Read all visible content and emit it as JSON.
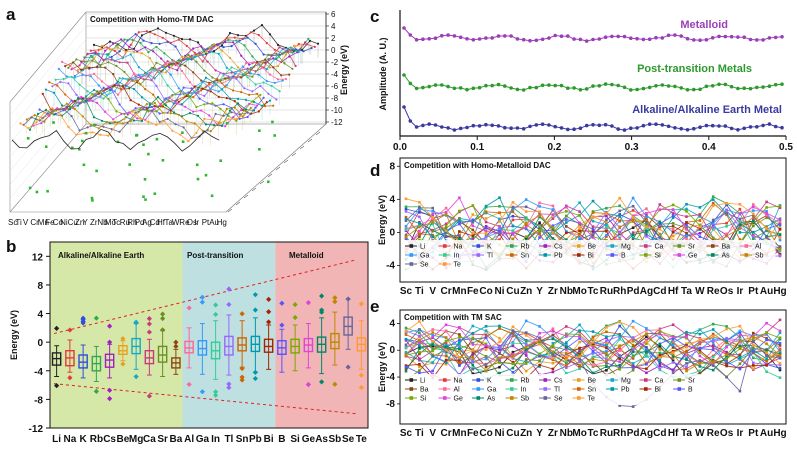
{
  "panels": {
    "a": {
      "label": "a",
      "title": "Competition with Homo-TM DAC",
      "ylabel": "Energy (eV)",
      "yticks": [
        "6",
        "4",
        "2",
        "0",
        "-2",
        "-4",
        "-6",
        "-8",
        "-10",
        "-12"
      ],
      "xlabels": [
        "Sc",
        "Ti",
        "V",
        "Cr",
        "Mn",
        "Fe",
        "Co",
        "Ni",
        "Cu",
        "Zn",
        "Y",
        "Zr",
        "Nb",
        "Mo",
        "Tc",
        "Ru",
        "Rh",
        "Pd",
        "Ag",
        "Cd",
        "Hf",
        "Ta",
        "W",
        "Re",
        "Os",
        "Ir",
        "Pt",
        "Au",
        "Hg"
      ]
    },
    "b": {
      "label": "b",
      "ylabel": "Energy (eV)",
      "regions": [
        {
          "name": "Alkaline/Alkaline Earth",
          "color": "#d6e8a8"
        },
        {
          "name": "Post-transition",
          "color": "#bfe0e0"
        },
        {
          "name": "Metalloid",
          "color": "#f2b5b5"
        }
      ],
      "yticks": [
        "12",
        "8",
        "4",
        "0",
        "-4",
        "-8",
        "-12"
      ],
      "xlabels": [
        "Li",
        "Na",
        "K",
        "Rb",
        "Cs",
        "Be",
        "Mg",
        "Ca",
        "Sr",
        "Ba",
        "Al",
        "Ga",
        "In",
        "Tl",
        "Sn",
        "Pb",
        "Bi",
        "B",
        "Si",
        "Ge",
        "As",
        "Sb",
        "Se",
        "Te"
      ]
    },
    "c": {
      "label": "c",
      "ylabel": "Amplitude (A. U.)",
      "xticks": [
        "0.0",
        "0.1",
        "0.2",
        "0.3",
        "0.4",
        "0.5"
      ],
      "series": [
        {
          "name": "Metalloid",
          "color": "#9b3fb8"
        },
        {
          "name": "Post-transition Metals",
          "color": "#2e9a2e"
        },
        {
          "name": "Alkaline/Alkaline Earth Metal",
          "color": "#3a3aa0"
        }
      ]
    },
    "d": {
      "label": "d",
      "title": "Competition with Homo-Metalloid DAC",
      "ylabel": "Energy (eV)",
      "yticks": [
        "8",
        "4",
        "0",
        "-4"
      ],
      "legend": [
        "Li",
        "Na",
        "K",
        "Rb",
        "Cs",
        "Be",
        "Mg",
        "Ca",
        "Sr",
        "Ba",
        "Al",
        "Ga",
        "In",
        "Tl",
        "Sn",
        "Pb",
        "Bi",
        "B",
        "Si",
        "Ge",
        "As",
        "Sb",
        "Se",
        "Te"
      ]
    },
    "e": {
      "label": "e",
      "title": "Competition with TM SAC",
      "ylabel": "Energy (eV)",
      "yticks": [
        "4",
        "0",
        "-4",
        "-8"
      ],
      "legend": [
        "Li",
        "Na",
        "K",
        "Rb",
        "Cs",
        "Be",
        "Mg",
        "Ca",
        "Sr",
        "Ba",
        "Al",
        "Ga",
        "In",
        "Tl",
        "Sn",
        "Pb",
        "Bi",
        "B",
        "Si",
        "Ge",
        "As",
        "Sb",
        "Se",
        "Te"
      ]
    }
  },
  "tm_labels": [
    "Sc",
    "Ti",
    "V",
    "Cr",
    "Mn",
    "Fe",
    "Co",
    "Ni",
    "Cu",
    "Zn",
    "Y",
    "Zr",
    "Nb",
    "Mo",
    "Tc",
    "Ru",
    "Rh",
    "Pd",
    "Ag",
    "Cd",
    "Hf",
    "Ta",
    "W",
    "Re",
    "Os",
    "Ir",
    "Pt",
    "Au",
    "Hg"
  ],
  "chart_data": [
    {
      "type": "line",
      "panel": "a",
      "title": "Competition with Homo-TM DAC",
      "ylabel": "Energy (eV)",
      "ylim": [
        -12,
        6
      ],
      "note": "3D waterfall: one line per element, over 29 transition metals",
      "x": [
        "Sc",
        "Ti",
        "V",
        "Cr",
        "Mn",
        "Fe",
        "Co",
        "Ni",
        "Cu",
        "Zn",
        "Y",
        "Zr",
        "Nb",
        "Mo",
        "Tc",
        "Ru",
        "Rh",
        "Pd",
        "Ag",
        "Cd",
        "Hf",
        "Ta",
        "W",
        "Re",
        "Os",
        "Ir",
        "Pt",
        "Au",
        "Hg"
      ]
    },
    {
      "type": "box",
      "panel": "b",
      "ylabel": "Energy (eV)",
      "ylim": [
        -12,
        14
      ],
      "categories": [
        "Li",
        "Na",
        "K",
        "Rb",
        "Cs",
        "Be",
        "Mg",
        "Ca",
        "Sr",
        "Ba",
        "Al",
        "Ga",
        "In",
        "Tl",
        "Sn",
        "Pb",
        "Bi",
        "B",
        "Si",
        "Ge",
        "As",
        "Sb",
        "Se",
        "Te"
      ],
      "medians": [
        -2.3,
        -2.2,
        -2.8,
        -3.0,
        -2.5,
        -1.2,
        -0.6,
        -2.2,
        -1.8,
        -2.9,
        -0.8,
        -0.9,
        -1.2,
        -0.6,
        -0.4,
        -0.3,
        -0.6,
        -0.8,
        -0.6,
        -0.4,
        -0.3,
        0.0,
        2.2,
        -0.3
      ],
      "q1": [
        -3.2,
        -3.3,
        -3.6,
        -4.0,
        -3.5,
        -1.7,
        -1.6,
        -3.0,
        -2.8,
        -3.6,
        -1.5,
        -1.8,
        -2.3,
        -1.8,
        -1.2,
        -1.3,
        -1.4,
        -1.7,
        -1.5,
        -1.3,
        -1.4,
        -0.9,
        1.0,
        -1.2
      ],
      "q3": [
        -1.5,
        -1.2,
        -1.8,
        -2.0,
        -1.7,
        -0.5,
        0.5,
        -1.2,
        -0.6,
        -2.2,
        0.1,
        0.2,
        0.0,
        0.8,
        0.6,
        0.8,
        0.4,
        0.2,
        0.4,
        0.5,
        0.7,
        1.2,
        3.5,
        0.6
      ],
      "whisker_low": [
        -4.8,
        -4.2,
        -5.0,
        -5.5,
        -5.0,
        -2.6,
        -3.8,
        -4.6,
        -4.8,
        -4.5,
        -3.6,
        -4.5,
        -5.2,
        -4.6,
        -3.5,
        -4.2,
        -3.8,
        -4.2,
        -4.0,
        -3.6,
        -4.4,
        -3.2,
        -1.0,
        -3.8
      ],
      "whisker_high": [
        -0.5,
        0.3,
        -0.4,
        -0.6,
        -0.3,
        0.2,
        2.6,
        0.4,
        1.6,
        -1.0,
        2.0,
        2.6,
        3.0,
        3.8,
        3.0,
        3.4,
        2.4,
        1.8,
        2.4,
        2.6,
        3.4,
        4.2,
        6.0,
        3.0
      ],
      "region_labels": [
        "Alkaline/Alkaline Earth",
        "Post-transition",
        "Metalloid"
      ]
    },
    {
      "type": "line",
      "panel": "c",
      "xlabel": "",
      "ylabel": "Amplitude (A. U.)",
      "xlim": [
        0.0,
        0.5
      ],
      "series": [
        {
          "name": "Metalloid"
        },
        {
          "name": "Post-transition Metals"
        },
        {
          "name": "Alkaline/Alkaline Earth Metal"
        }
      ]
    },
    {
      "type": "line",
      "panel": "d",
      "title": "Competition with Homo-Metalloid DAC",
      "ylabel": "Energy (eV)",
      "ylim": [
        -6,
        9
      ],
      "x": [
        "Sc",
        "Ti",
        "V",
        "Cr",
        "Mn",
        "Fe",
        "Co",
        "Ni",
        "Cu",
        "Zn",
        "Y",
        "Zr",
        "Nb",
        "Mo",
        "Tc",
        "Ru",
        "Rh",
        "Pd",
        "Ag",
        "Cd",
        "Hf",
        "Ta",
        "W",
        "Re",
        "Os",
        "Ir",
        "Pt",
        "Au",
        "Hg"
      ],
      "legend": [
        "Li",
        "Na",
        "K",
        "Rb",
        "Cs",
        "Be",
        "Mg",
        "Ca",
        "Sr",
        "Ba",
        "Al",
        "Ga",
        "In",
        "Tl",
        "Sn",
        "Pb",
        "Bi",
        "B",
        "Si",
        "Ge",
        "As",
        "Sb",
        "Se",
        "Te"
      ]
    },
    {
      "type": "line",
      "panel": "e",
      "title": "Competition with TM SAC",
      "ylabel": "Energy (eV)",
      "ylim": [
        -11,
        6
      ],
      "x": [
        "Sc",
        "Ti",
        "V",
        "Cr",
        "Mn",
        "Fe",
        "Co",
        "Ni",
        "Cu",
        "Zn",
        "Y",
        "Zr",
        "Nb",
        "Mo",
        "Tc",
        "Ru",
        "Rh",
        "Pd",
        "Ag",
        "Cd",
        "Hf",
        "Ta",
        "W",
        "Re",
        "Os",
        "Ir",
        "Pt",
        "Au",
        "Hg"
      ],
      "legend": [
        "Li",
        "Na",
        "K",
        "Rb",
        "Cs",
        "Be",
        "Mg",
        "Ca",
        "Sr",
        "Ba",
        "Al",
        "Ga",
        "In",
        "Tl",
        "Sn",
        "Pb",
        "Bi",
        "B",
        "Si",
        "Ge",
        "As",
        "Sb",
        "Se",
        "Te"
      ]
    }
  ]
}
